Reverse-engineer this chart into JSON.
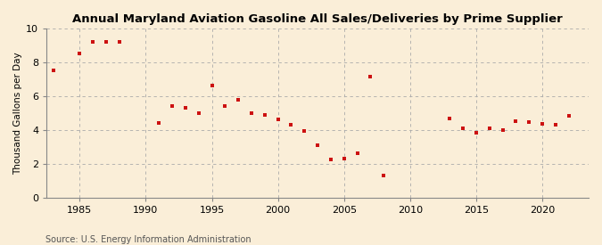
{
  "title": "Annual Maryland Aviation Gasoline All Sales/Deliveries by Prime Supplier",
  "ylabel": "Thousand Gallons per Day",
  "source": "Source: U.S. Energy Information Administration",
  "background_color": "#faeed8",
  "marker_color": "#cc1111",
  "xlim": [
    1982.5,
    2023.5
  ],
  "ylim": [
    0,
    10
  ],
  "xticks": [
    1985,
    1990,
    1995,
    2000,
    2005,
    2010,
    2015,
    2020
  ],
  "yticks": [
    0,
    2,
    4,
    6,
    8,
    10
  ],
  "years": [
    1983,
    1985,
    1986,
    1987,
    1988,
    1991,
    1992,
    1993,
    1994,
    1995,
    1996,
    1997,
    1998,
    1999,
    2000,
    2001,
    2002,
    2003,
    2004,
    2005,
    2006,
    2007,
    2008,
    2013,
    2014,
    2015,
    2016,
    2017,
    2018,
    2019,
    2020,
    2021,
    2022
  ],
  "values": [
    7.5,
    8.5,
    9.2,
    9.2,
    9.2,
    4.4,
    5.4,
    5.3,
    5.0,
    6.6,
    5.4,
    5.8,
    5.0,
    4.9,
    4.6,
    4.3,
    3.95,
    3.1,
    2.25,
    2.3,
    2.6,
    7.15,
    1.3,
    4.7,
    4.1,
    3.85,
    4.1,
    4.0,
    4.5,
    4.45,
    4.35,
    4.3,
    4.85
  ]
}
